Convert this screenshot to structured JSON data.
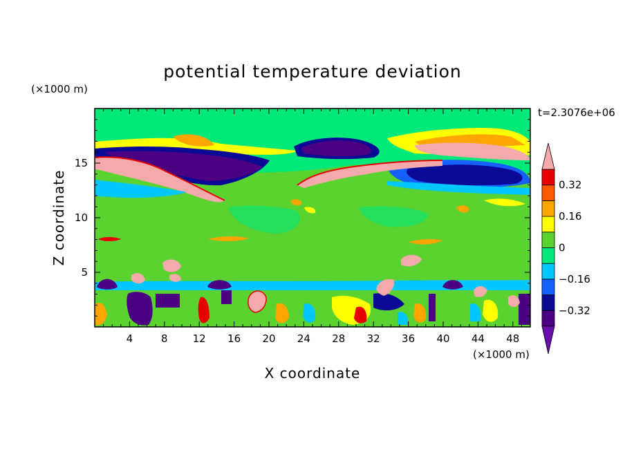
{
  "chart_data": {
    "type": "heatmap",
    "title": "potential temperature deviation",
    "xlabel": "X coordinate",
    "ylabel": "Z coordinate",
    "x_unit_label": "(×1000 m)",
    "y_unit_label": "(×1000 m)",
    "time_label": "t=2.3076e+06",
    "xlim": [
      0,
      50
    ],
    "ylim": [
      0,
      20
    ],
    "x_ticks": [
      4,
      8,
      12,
      16,
      20,
      24,
      28,
      32,
      36,
      40,
      44,
      48
    ],
    "x_tick_labels": [
      "4",
      "8",
      "12",
      "16",
      "20",
      "24",
      "28",
      "32",
      "36",
      "40",
      "44",
      "48"
    ],
    "y_ticks": [
      5,
      10,
      15
    ],
    "y_tick_labels": [
      "5",
      "10",
      "15"
    ],
    "colorbar": {
      "levels": [
        -0.4,
        -0.32,
        -0.24,
        -0.16,
        -0.08,
        0,
        0.08,
        0.16,
        0.24,
        0.32,
        0.4
      ],
      "labels": [
        "0.32",
        "0.16",
        "0",
        "−0.16",
        "−0.32"
      ],
      "label_values": [
        0.32,
        0.16,
        0,
        -0.16,
        -0.32
      ],
      "colors": [
        "#6a0dad",
        "#4b0082",
        "#0a0a96",
        "#1560ff",
        "#00c8ff",
        "#00e87a",
        "#5ad230",
        "#ffff00",
        "#ffa500",
        "#ff5a00",
        "#e60000",
        "#f4aaaa"
      ],
      "extend": "both"
    },
    "field_description": "2D contour field of potential temperature deviation over X (0-50) and Z (0-20)"
  }
}
